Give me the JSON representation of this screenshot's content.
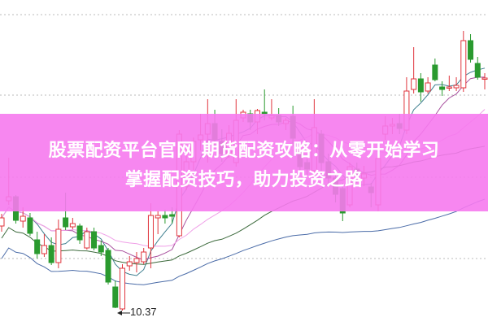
{
  "banner": {
    "line1": "股票配资平台官网 期货配资攻略：从零开始学习",
    "line2": "掌握配资技巧，助力投资之路"
  },
  "chart_data": {
    "type": "candlestick",
    "title": "",
    "ylim": [
      10.18,
      14.19
    ],
    "grid": "horizontal dotted",
    "annotations": [
      {
        "text": "10.37",
        "type": "low-price"
      }
    ],
    "colors": {
      "up": "#e0353d",
      "down": "#2a9a2f",
      "banner": "#f67aee",
      "ma_short": "#3f7f8f",
      "ma_mid": "#a8509e",
      "ma_pink": "#f0a0e8",
      "ma_long": "#4b6ca8",
      "ma_green": "#3c6a3c"
    },
    "candles": [
      [
        11.41,
        11.51,
        11.56,
        11.34
      ],
      [
        11.72,
        11.77,
        12.25,
        11.67
      ],
      [
        11.77,
        11.48,
        11.79,
        11.44
      ],
      [
        11.47,
        11.53,
        11.64,
        11.39
      ],
      [
        11.51,
        11.32,
        11.57,
        11.29
      ],
      [
        11.24,
        11.07,
        11.34,
        11.01
      ],
      [
        11.07,
        11.17,
        11.31,
        11.03
      ],
      [
        11.17,
        10.96,
        11.27,
        10.93
      ],
      [
        10.96,
        11.37,
        11.49,
        10.89
      ],
      [
        11.51,
        11.4,
        11.82,
        11.36
      ],
      [
        11.4,
        11.44,
        11.51,
        11.37
      ],
      [
        11.41,
        11.24,
        11.44,
        11.19
      ],
      [
        11.14,
        11.34,
        11.39,
        11.12
      ],
      [
        11.34,
        11.14,
        11.39,
        11.11
      ],
      [
        11.17,
        11.09,
        11.23,
        11.04
      ],
      [
        11.11,
        10.72,
        11.14,
        10.69
      ],
      [
        10.66,
        10.41,
        10.74,
        10.4
      ],
      [
        10.39,
        10.89,
        10.94,
        10.37
      ],
      [
        10.92,
        10.97,
        11.04,
        10.86
      ],
      [
        10.96,
        11.01,
        11.09,
        10.84
      ],
      [
        10.97,
        11.09,
        11.14,
        10.94
      ],
      [
        11.14,
        11.54,
        11.69,
        10.89
      ],
      [
        11.51,
        11.54,
        11.59,
        11.31
      ],
      [
        11.54,
        11.51,
        11.61,
        11.44
      ],
      [
        11.55,
        11.53,
        11.64,
        11.44
      ],
      [
        11.29,
        12.54,
        12.59,
        11.27
      ],
      [
        11.9,
        12.2,
        12.35,
        11.85
      ],
      [
        12.2,
        12.45,
        12.5,
        12.1
      ],
      [
        12.47,
        12.53,
        12.79,
        12.34
      ],
      [
        12.54,
        12.67,
        12.97,
        12.19
      ],
      [
        12.67,
        12.47,
        12.84,
        12.39
      ],
      [
        12.45,
        12.3,
        12.6,
        12.2
      ],
      [
        12.3,
        12.55,
        12.65,
        12.25
      ],
      [
        12.19,
        12.71,
        12.97,
        12.14
      ],
      [
        12.74,
        12.81,
        12.84,
        12.69
      ],
      [
        12.79,
        12.69,
        12.84,
        12.59
      ],
      [
        12.69,
        12.83,
        12.85,
        12.54
      ],
      [
        12.81,
        12.79,
        13.09,
        12.71
      ],
      [
        12.74,
        12.77,
        12.97,
        12.71
      ],
      [
        12.77,
        12.69,
        12.86,
        12.64
      ],
      [
        12.67,
        12.71,
        12.74,
        12.59
      ],
      [
        12.76,
        12.49,
        12.89,
        12.39
      ],
      [
        12.34,
        12.14,
        12.44,
        12.09
      ],
      [
        12.19,
        12.11,
        12.24,
        12.04
      ],
      [
        12.09,
        12.62,
        12.97,
        12.04
      ],
      [
        12.54,
        12.19,
        12.59,
        12.09
      ],
      [
        12.2,
        12.0,
        12.3,
        11.9
      ],
      [
        12.0,
        11.8,
        12.1,
        11.7
      ],
      [
        11.87,
        11.57,
        11.94,
        11.47
      ],
      [
        11.67,
        12.14,
        12.19,
        11.64
      ],
      [
        12.11,
        12.04,
        12.19,
        11.94
      ],
      [
        12.0,
        12.05,
        12.15,
        11.9
      ],
      [
        11.89,
        11.82,
        11.94,
        11.64
      ],
      [
        11.67,
        12.24,
        12.41,
        11.59
      ],
      [
        12.54,
        12.64,
        12.76,
        12.47
      ],
      [
        12.64,
        12.66,
        12.74,
        12.54
      ],
      [
        12.67,
        12.61,
        12.79,
        12.54
      ],
      [
        12.59,
        13.07,
        13.24,
        12.54
      ],
      [
        13.09,
        13.22,
        13.61,
        13.04
      ],
      [
        13.22,
        13.06,
        13.29,
        12.94
      ],
      [
        13.07,
        13.17,
        13.24,
        13.04
      ],
      [
        13.39,
        13.21,
        13.47,
        13.19
      ],
      [
        13.12,
        13.09,
        13.19,
        13.01
      ],
      [
        13.11,
        13.12,
        13.26,
        13.07
      ],
      [
        13.11,
        13.14,
        13.24,
        13.07
      ],
      [
        13.11,
        13.69,
        13.81,
        13.06
      ],
      [
        13.69,
        13.46,
        13.77,
        13.42
      ],
      [
        13.41,
        13.24,
        13.49,
        13.21
      ],
      [
        13.22,
        13.23,
        13.29,
        13.09
      ]
    ],
    "candle_format": [
      "open",
      "close",
      "high",
      "low"
    ],
    "moving_averages": [
      5,
      10,
      20,
      30,
      60
    ]
  }
}
